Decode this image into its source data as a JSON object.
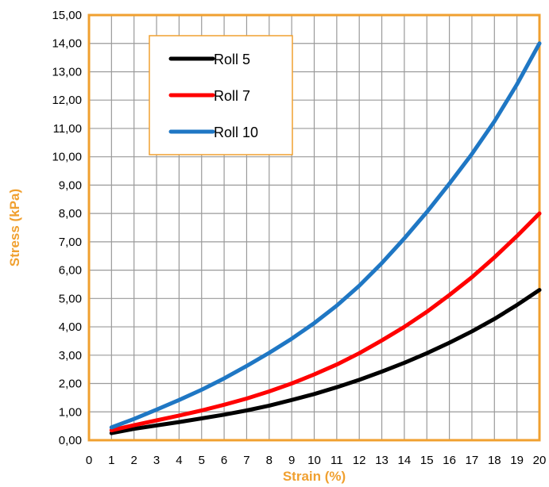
{
  "chart_data": {
    "type": "line",
    "title": "",
    "xlabel": "Strain (%)",
    "ylabel": "Stress (kPa)",
    "xlim": [
      0,
      20
    ],
    "ylim": [
      0,
      15
    ],
    "x_ticks": [
      "0",
      "1",
      "2",
      "3",
      "4",
      "5",
      "6",
      "7",
      "8",
      "9",
      "10",
      "11",
      "12",
      "13",
      "14",
      "15",
      "16",
      "17",
      "18",
      "19",
      "20"
    ],
    "y_ticks": [
      "0,00",
      "1,00",
      "2,00",
      "3,00",
      "4,00",
      "5,00",
      "6,00",
      "7,00",
      "8,00",
      "9,00",
      "10,00",
      "11,00",
      "12,00",
      "13,00",
      "14,00",
      "15,00"
    ],
    "grid": true,
    "legend_position": "top-left",
    "axis_title_color": "#F0A030",
    "frame_color": "#F0A030",
    "x": [
      1,
      2,
      3,
      4,
      5,
      6,
      7,
      8,
      9,
      10,
      11,
      12,
      13,
      14,
      15,
      16,
      17,
      18,
      19,
      20
    ],
    "series": [
      {
        "name": "Roll 5",
        "color": "#000000",
        "values": [
          0.25,
          0.4,
          0.52,
          0.64,
          0.77,
          0.9,
          1.05,
          1.22,
          1.42,
          1.63,
          1.87,
          2.13,
          2.42,
          2.73,
          3.07,
          3.44,
          3.84,
          4.28,
          4.77,
          5.3
        ]
      },
      {
        "name": "Roll 7",
        "color": "#FF0000",
        "values": [
          0.35,
          0.53,
          0.7,
          0.87,
          1.05,
          1.25,
          1.47,
          1.72,
          2.0,
          2.32,
          2.67,
          3.07,
          3.52,
          4.0,
          4.53,
          5.12,
          5.75,
          6.45,
          7.2,
          8.0
        ]
      },
      {
        "name": "Roll 10",
        "color": "#1F77C4",
        "values": [
          0.45,
          0.75,
          1.08,
          1.42,
          1.78,
          2.18,
          2.62,
          3.08,
          3.58,
          4.13,
          4.75,
          5.45,
          6.25,
          7.12,
          8.05,
          9.05,
          10.1,
          11.25,
          12.55,
          14.0
        ]
      }
    ]
  }
}
